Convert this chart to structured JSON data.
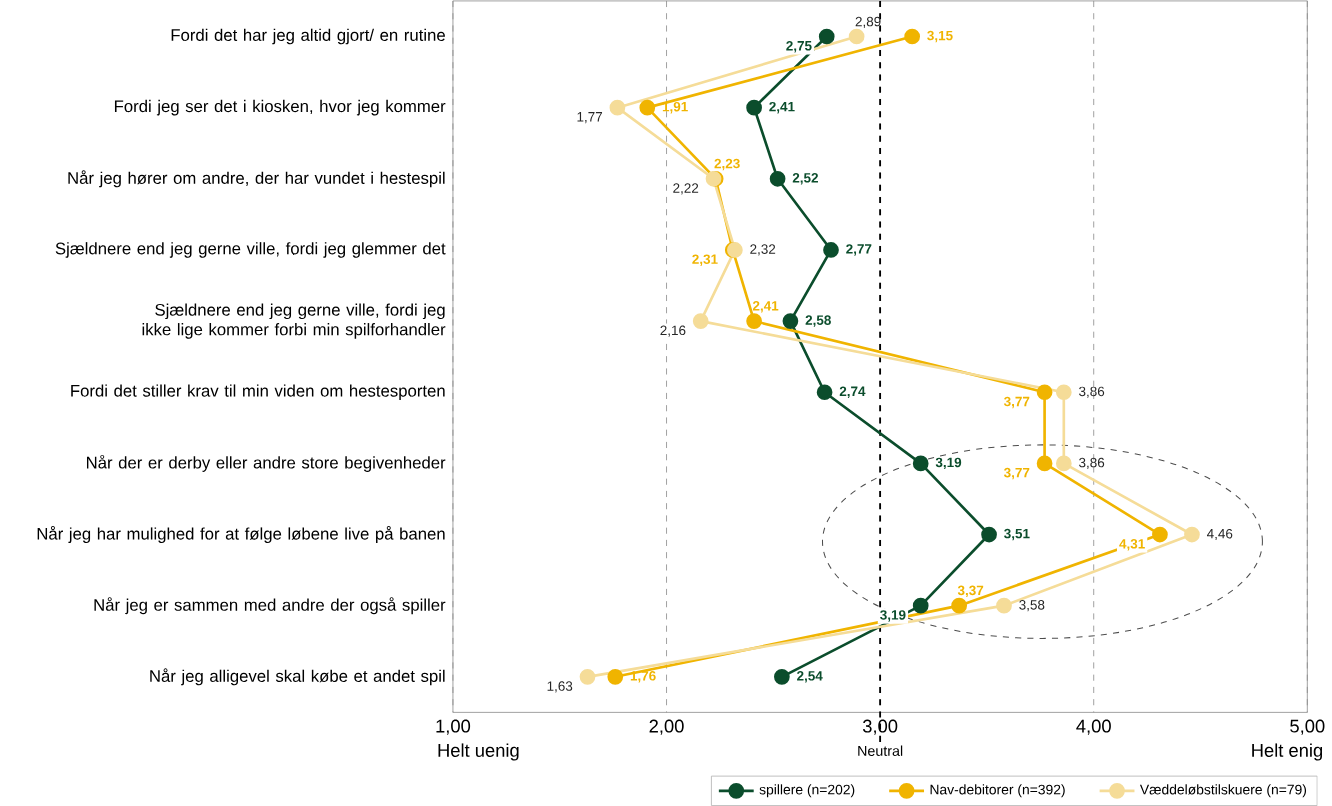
{
  "chart_data": {
    "type": "line",
    "orientation": "horizontal",
    "categories": [
      "Fordi det har jeg altid gjort/ en rutine",
      "Fordi jeg ser det i kiosken, hvor jeg kommer",
      "Når jeg hører om andre, der har vundet i hestespil",
      "Sjældnere end jeg gerne ville, fordi jeg glemmer det",
      "Sjældnere end jeg gerne ville, fordi jeg ikke lige kommer forbi min spilforhandler",
      "Fordi det stiller krav til min viden om hestesporten",
      "Når der er derby eller andre store begivenheder",
      "Når jeg har mulighed for at følge løbene live på banen",
      "Når jeg er sammen med andre der også spiller",
      "Når jeg alligevel skal købe et andet spil"
    ],
    "series": [
      {
        "name": "spillere (n=202)",
        "color": "#0b4d2c",
        "values": [
          2.75,
          2.41,
          2.52,
          2.77,
          2.58,
          2.74,
          3.19,
          3.51,
          3.19,
          2.54
        ],
        "value_labels": [
          "2,75",
          "2,41",
          "2,52",
          "2,77",
          "2,58",
          "2,74",
          "3,19",
          "3,51",
          "3,19",
          "2,54"
        ]
      },
      {
        "name": "Nav-debitorer (n=392)",
        "color": "#f0b400",
        "values": [
          3.15,
          1.91,
          2.23,
          2.31,
          2.41,
          3.77,
          3.77,
          4.31,
          3.37,
          1.76
        ],
        "value_labels": [
          "3,15",
          "1,91",
          "2,23",
          "2,31",
          "2,41",
          "3,77",
          "3,77",
          "4,31",
          "3,37",
          "1,76"
        ]
      },
      {
        "name": "Væddeløbstilskuere (n=79)",
        "color": "#f5dc98",
        "values": [
          2.89,
          1.77,
          2.22,
          2.32,
          2.16,
          3.86,
          3.86,
          4.46,
          3.58,
          1.63
        ],
        "value_labels": [
          "2,89",
          "1,77",
          "2,22",
          "2,32",
          "2,16",
          "3,86",
          "3,86",
          "4,46",
          "3,58",
          "1,63"
        ]
      }
    ],
    "xlim": [
      1,
      5
    ],
    "xticks": [
      {
        "value": 1,
        "label": "1,00"
      },
      {
        "value": 2,
        "label": "2,00"
      },
      {
        "value": 3,
        "label": "3,00"
      },
      {
        "value": 4,
        "label": "4,00"
      },
      {
        "value": 5,
        "label": "5,00"
      }
    ],
    "ref_lines": [
      {
        "axis": "x",
        "value": 3,
        "label": "Neutral",
        "color": "#000000",
        "line_style": "dashed"
      }
    ],
    "annotations": [
      "Helt uenig",
      "Helt enig"
    ],
    "grid": "x",
    "legend": "bottom",
    "marker": "circle",
    "line_style": "solid"
  }
}
